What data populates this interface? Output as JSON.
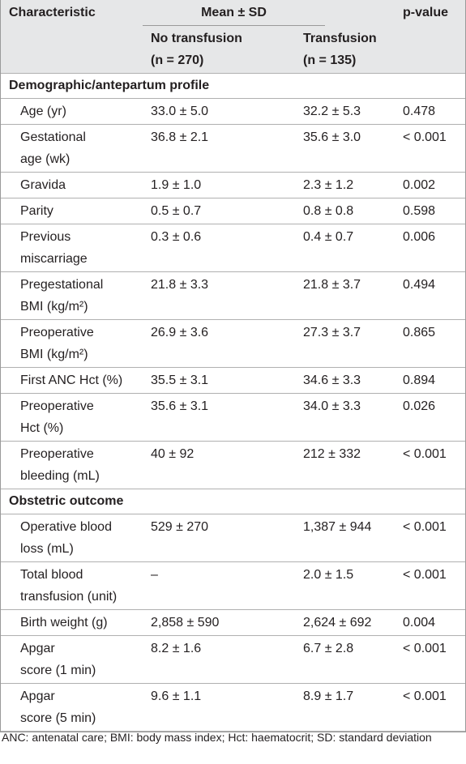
{
  "header": {
    "characteristic": "Characteristic",
    "mean_sd": "Mean ± SD",
    "no_transfusion": "No transfusion\n(n = 270)",
    "transfusion": "Transfusion\n(n = 135)",
    "p_value": "p-value"
  },
  "sections": [
    {
      "title": "Demographic/antepartum profile",
      "rows": [
        [
          "Age (yr)",
          "33.0 ± 5.0",
          "32.2 ± 5.3",
          "0.478"
        ],
        [
          "Gestational\nage (wk)",
          "36.8 ± 2.1",
          "35.6 ± 3.0",
          "< 0.001"
        ],
        [
          "Gravida",
          "1.9 ± 1.0",
          "2.3 ± 1.2",
          "0.002"
        ],
        [
          "Parity",
          "0.5 ± 0.7",
          "0.8 ± 0.8",
          "0.598"
        ],
        [
          "Previous\nmiscarriage",
          "0.3 ± 0.6",
          "0.4 ± 0.7",
          "0.006"
        ],
        [
          "Pregestational\nBMI (kg/m²)",
          "21.8 ± 3.3",
          "21.8 ± 3.7",
          "0.494"
        ],
        [
          "Preoperative\nBMI (kg/m²)",
          "26.9 ± 3.6",
          "27.3 ± 3.7",
          "0.865"
        ],
        [
          "First ANC Hct (%)",
          "35.5 ± 3.1",
          "34.6 ± 3.3",
          "0.894"
        ],
        [
          "Preoperative\nHct (%)",
          "35.6 ± 3.1",
          "34.0 ± 3.3",
          "0.026"
        ],
        [
          "Preoperative\nbleeding (mL)",
          "40 ± 92",
          "212 ± 332",
          "< 0.001"
        ]
      ]
    },
    {
      "title": "Obstetric outcome",
      "rows": [
        [
          "Operative blood\nloss (mL)",
          "529 ± 270",
          "1,387 ± 944",
          "< 0.001"
        ],
        [
          "Total blood\ntransfusion (unit)",
          "–",
          "2.0 ± 1.5",
          "< 0.001"
        ],
        [
          "Birth weight (g)",
          "2,858 ± 590",
          "2,624 ± 692",
          "0.004"
        ],
        [
          "Apgar\nscore (1 min)",
          "8.2 ± 1.6",
          "6.7 ± 2.8",
          "< 0.001"
        ],
        [
          "Apgar\nscore (5 min)",
          "9.6 ± 1.1",
          "8.9 ± 1.7",
          "< 0.001"
        ]
      ]
    }
  ],
  "footnote": "ANC: antenatal care; BMI: body mass index; Hct: haematocrit; SD: standard deviation"
}
